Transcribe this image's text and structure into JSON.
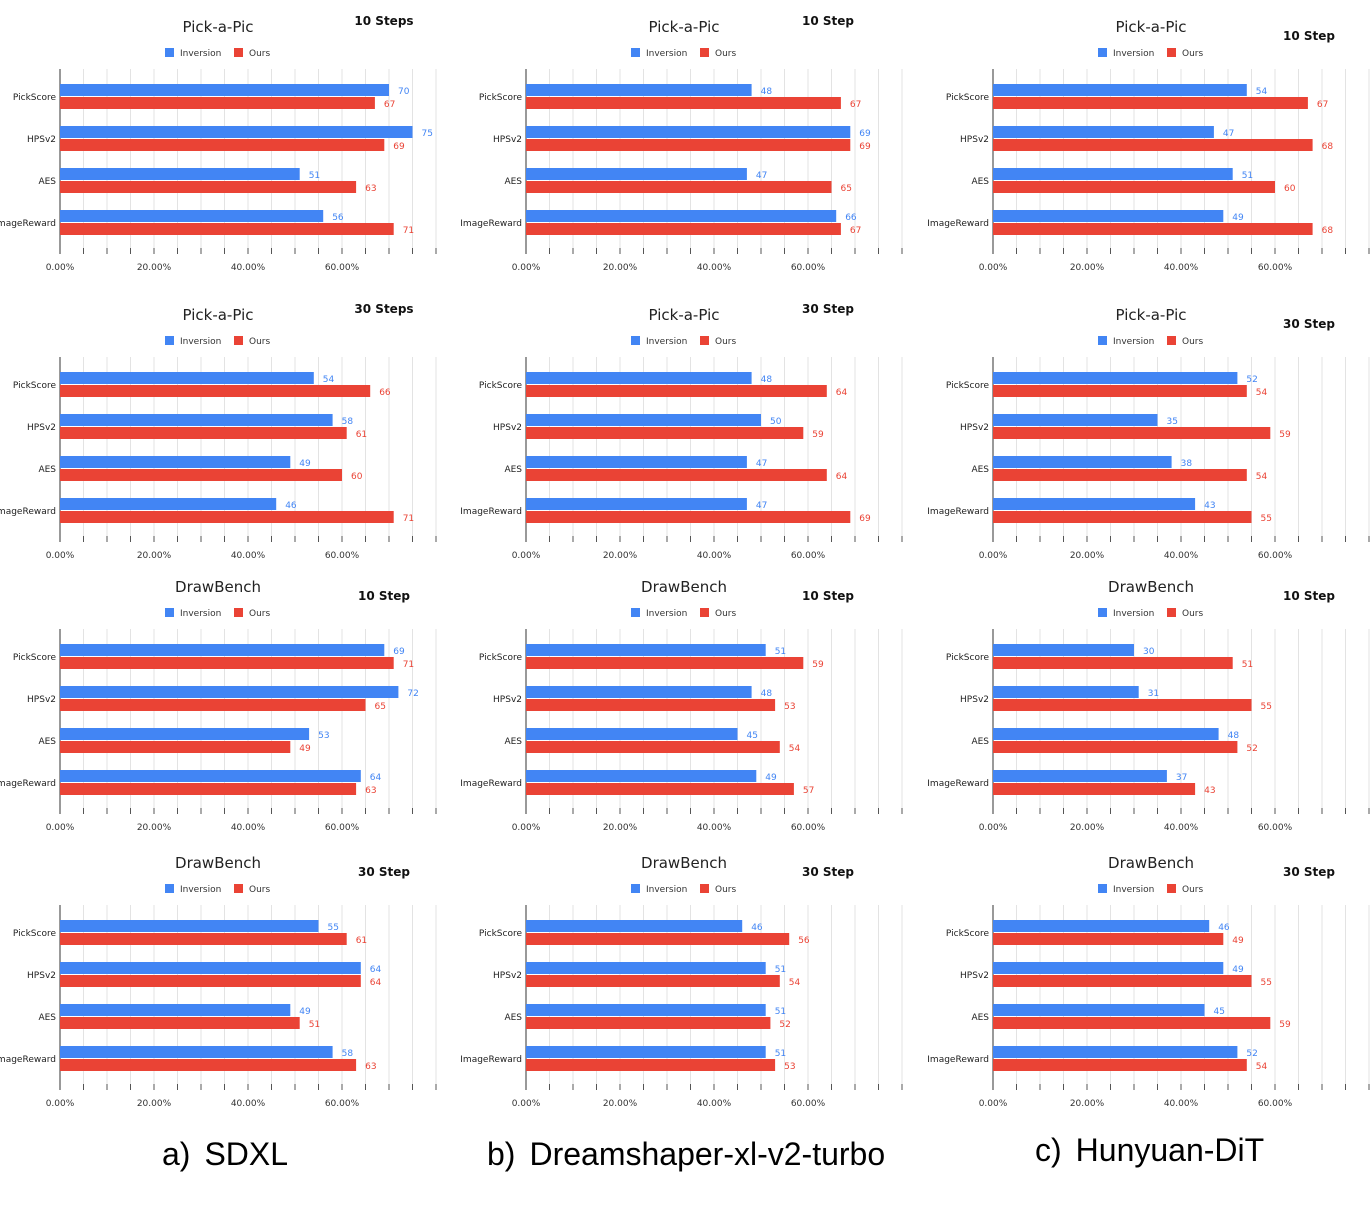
{
  "colors": {
    "inversion": "#4285f4",
    "ours": "#ea4335",
    "grid": "#e3e3e3",
    "axis": "#333333"
  },
  "legend": {
    "series1": "Inversion",
    "series2": "Ours"
  },
  "captions": [
    {
      "letter": "a)",
      "name": "SDXL"
    },
    {
      "letter": "b)",
      "name": "Dreamshaper-xl-v2-turbo"
    },
    {
      "letter": "c)",
      "name": "Hunyuan-DiT"
    }
  ],
  "chart_data": [
    {
      "type": "bar",
      "orientation": "horizontal",
      "title": "Pick-a-Pic",
      "steps": "10 Steps",
      "categories": [
        "PickScore",
        "HPSv2",
        "AES",
        "ImageReward"
      ],
      "series": [
        {
          "name": "Inversion",
          "values": [
            70,
            75,
            51,
            56
          ]
        },
        {
          "name": "Ours",
          "values": [
            67,
            69,
            63,
            71
          ]
        }
      ],
      "xlim": [
        0,
        80
      ],
      "xticks": [
        "0.00%",
        "20.00%",
        "40.00%",
        "60.00%"
      ],
      "legend": "top"
    },
    {
      "type": "bar",
      "orientation": "horizontal",
      "title": "Pick-a-Pic",
      "steps": "10 Step",
      "categories": [
        "PickScore",
        "HPSv2",
        "AES",
        "ImageReward"
      ],
      "series": [
        {
          "name": "Inversion",
          "values": [
            48,
            69,
            47,
            66
          ]
        },
        {
          "name": "Ours",
          "values": [
            67,
            69,
            65,
            67
          ]
        }
      ],
      "xlim": [
        0,
        80
      ],
      "xticks": [
        "0.00%",
        "20.00%",
        "40.00%",
        "60.00%"
      ],
      "legend": "top"
    },
    {
      "type": "bar",
      "orientation": "horizontal",
      "title": "Pick-a-Pic",
      "steps": "10 Step",
      "categories": [
        "PickScore",
        "HPSv2",
        "AES",
        "ImageReward"
      ],
      "series": [
        {
          "name": "Inversion",
          "values": [
            54,
            47,
            51,
            49
          ]
        },
        {
          "name": "Ours",
          "values": [
            67,
            68,
            60,
            68
          ]
        }
      ],
      "xlim": [
        0,
        80
      ],
      "xticks": [
        "0.00%",
        "20.00%",
        "40.00%",
        "60.00%"
      ],
      "legend": "top"
    },
    {
      "type": "bar",
      "orientation": "horizontal",
      "title": "Pick-a-Pic",
      "steps": "30 Steps",
      "categories": [
        "PickScore",
        "HPSv2",
        "AES",
        "ImageReward"
      ],
      "series": [
        {
          "name": "Inversion",
          "values": [
            54,
            58,
            49,
            46
          ]
        },
        {
          "name": "Ours",
          "values": [
            66,
            61,
            60,
            71
          ]
        }
      ],
      "xlim": [
        0,
        80
      ],
      "xticks": [
        "0.00%",
        "20.00%",
        "40.00%",
        "60.00%"
      ],
      "legend": "top"
    },
    {
      "type": "bar",
      "orientation": "horizontal",
      "title": "Pick-a-Pic",
      "steps": "30 Step",
      "categories": [
        "PickScore",
        "HPSv2",
        "AES",
        "ImageReward"
      ],
      "series": [
        {
          "name": "Inversion",
          "values": [
            48,
            50,
            47,
            47
          ]
        },
        {
          "name": "Ours",
          "values": [
            64,
            59,
            64,
            69
          ]
        }
      ],
      "xlim": [
        0,
        80
      ],
      "xticks": [
        "0.00%",
        "20.00%",
        "40.00%",
        "60.00%"
      ],
      "legend": "top"
    },
    {
      "type": "bar",
      "orientation": "horizontal",
      "title": "Pick-a-Pic",
      "steps": "30 Step",
      "categories": [
        "PickScore",
        "HPSv2",
        "AES",
        "ImageReward"
      ],
      "series": [
        {
          "name": "Inversion",
          "values": [
            52,
            35,
            38,
            43
          ]
        },
        {
          "name": "Ours",
          "values": [
            54,
            59,
            54,
            55
          ]
        }
      ],
      "xlim": [
        0,
        80
      ],
      "xticks": [
        "0.00%",
        "20.00%",
        "40.00%",
        "60.00%"
      ],
      "legend": "top"
    },
    {
      "type": "bar",
      "orientation": "horizontal",
      "title": "DrawBench",
      "steps": "10 Step",
      "categories": [
        "PickScore",
        "HPSv2",
        "AES",
        "ImageReward"
      ],
      "series": [
        {
          "name": "Inversion",
          "values": [
            69,
            72,
            53,
            64
          ]
        },
        {
          "name": "Ours",
          "values": [
            71,
            65,
            49,
            63
          ]
        }
      ],
      "xlim": [
        0,
        80
      ],
      "xticks": [
        "0.00%",
        "20.00%",
        "40.00%",
        "60.00%"
      ],
      "legend": "top"
    },
    {
      "type": "bar",
      "orientation": "horizontal",
      "title": "DrawBench",
      "steps": "10 Step",
      "categories": [
        "PickScore",
        "HPSv2",
        "AES",
        "ImageReward"
      ],
      "series": [
        {
          "name": "Inversion",
          "values": [
            51,
            48,
            45,
            49
          ]
        },
        {
          "name": "Ours",
          "values": [
            59,
            53,
            54,
            57
          ]
        }
      ],
      "xlim": [
        0,
        80
      ],
      "xticks": [
        "0.00%",
        "20.00%",
        "40.00%",
        "60.00%"
      ],
      "legend": "top"
    },
    {
      "type": "bar",
      "orientation": "horizontal",
      "title": "DrawBench",
      "steps": "10 Step",
      "categories": [
        "PickScore",
        "HPSv2",
        "AES",
        "ImageReward"
      ],
      "series": [
        {
          "name": "Inversion",
          "values": [
            30,
            31,
            48,
            37
          ]
        },
        {
          "name": "Ours",
          "values": [
            51,
            55,
            52,
            43
          ]
        }
      ],
      "xlim": [
        0,
        80
      ],
      "xticks": [
        "0.00%",
        "20.00%",
        "40.00%",
        "60.00%"
      ],
      "legend": "top"
    },
    {
      "type": "bar",
      "orientation": "horizontal",
      "title": "DrawBench",
      "steps": "30 Step",
      "categories": [
        "PickScore",
        "HPSv2",
        "AES",
        "ImageReward"
      ],
      "series": [
        {
          "name": "Inversion",
          "values": [
            55,
            64,
            49,
            58
          ]
        },
        {
          "name": "Ours",
          "values": [
            61,
            64,
            51,
            63
          ]
        }
      ],
      "xlim": [
        0,
        80
      ],
      "xticks": [
        "0.00%",
        "20.00%",
        "40.00%",
        "60.00%"
      ],
      "legend": "top"
    },
    {
      "type": "bar",
      "orientation": "horizontal",
      "title": "DrawBench",
      "steps": "30 Step",
      "categories": [
        "PickScore",
        "HPSv2",
        "AES",
        "ImageReward"
      ],
      "series": [
        {
          "name": "Inversion",
          "values": [
            46,
            51,
            51,
            51
          ]
        },
        {
          "name": "Ours",
          "values": [
            56,
            54,
            52,
            53
          ]
        }
      ],
      "xlim": [
        0,
        80
      ],
      "xticks": [
        "0.00%",
        "20.00%",
        "40.00%",
        "60.00%"
      ],
      "legend": "top"
    },
    {
      "type": "bar",
      "orientation": "horizontal",
      "title": "DrawBench",
      "steps": "30 Step",
      "categories": [
        "PickScore",
        "HPSv2",
        "AES",
        "ImageReward"
      ],
      "series": [
        {
          "name": "Inversion",
          "values": [
            46,
            49,
            45,
            52
          ]
        },
        {
          "name": "Ours",
          "values": [
            49,
            55,
            59,
            54
          ]
        }
      ],
      "xlim": [
        0,
        80
      ],
      "xticks": [
        "0.00%",
        "20.00%",
        "40.00%",
        "60.00%"
      ],
      "legend": "top"
    }
  ]
}
